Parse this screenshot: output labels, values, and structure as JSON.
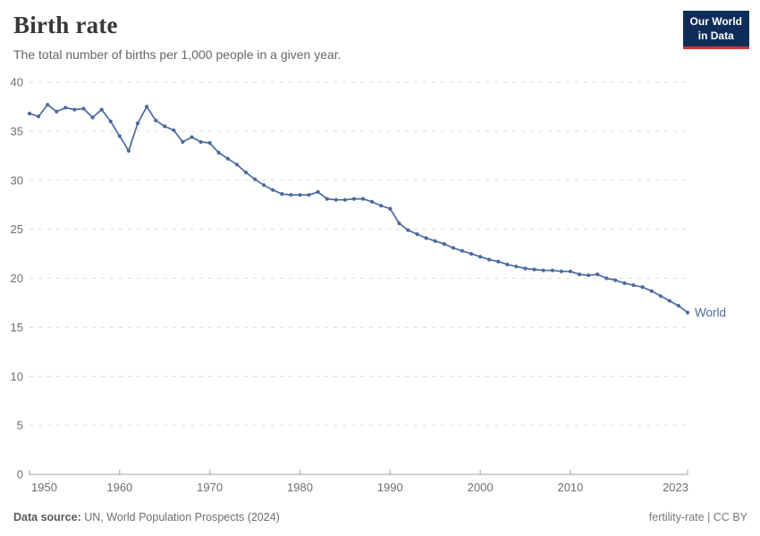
{
  "header": {
    "title": "Birth rate",
    "subtitle": "The total number of births per 1,000 people in a given year.",
    "logo": {
      "line1": "Our World",
      "line2": "in Data",
      "bg": "#102d59",
      "accent": "#d7342f"
    }
  },
  "chart_data": {
    "type": "line",
    "title": "Birth rate",
    "xlabel": "",
    "ylabel": "",
    "ylim": [
      0,
      40
    ],
    "yticks": [
      0,
      5,
      10,
      15,
      20,
      25,
      30,
      35,
      40
    ],
    "xticks": [
      1950,
      1960,
      1970,
      1980,
      1990,
      2000,
      2010,
      2023
    ],
    "grid": "horizontal-dashed",
    "legend_position": "end-of-line",
    "colors": {
      "line": "#4b69a0",
      "grid": "#dcdcdc",
      "axis": "#a0a0a0",
      "tick_label": "#6e6e6e"
    },
    "series": [
      {
        "name": "World",
        "color": "#4b69a0",
        "x": [
          1950,
          1951,
          1952,
          1953,
          1954,
          1955,
          1956,
          1957,
          1958,
          1959,
          1960,
          1961,
          1962,
          1963,
          1964,
          1965,
          1966,
          1967,
          1968,
          1969,
          1970,
          1971,
          1972,
          1973,
          1974,
          1975,
          1976,
          1977,
          1978,
          1979,
          1980,
          1981,
          1982,
          1983,
          1984,
          1985,
          1986,
          1987,
          1988,
          1989,
          1990,
          1991,
          1992,
          1993,
          1994,
          1995,
          1996,
          1997,
          1998,
          1999,
          2000,
          2001,
          2002,
          2003,
          2004,
          2005,
          2006,
          2007,
          2008,
          2009,
          2010,
          2011,
          2012,
          2013,
          2014,
          2015,
          2016,
          2017,
          2018,
          2019,
          2020,
          2021,
          2022,
          2023
        ],
        "values": [
          36.8,
          36.5,
          37.7,
          37.0,
          37.4,
          37.2,
          37.3,
          36.4,
          37.2,
          36.0,
          34.5,
          33.0,
          35.8,
          37.5,
          36.1,
          35.5,
          35.1,
          33.9,
          34.4,
          33.9,
          33.8,
          32.8,
          32.2,
          31.6,
          30.8,
          30.1,
          29.5,
          29.0,
          28.6,
          28.5,
          28.5,
          28.5,
          28.8,
          28.1,
          28.0,
          28.0,
          28.1,
          28.1,
          27.8,
          27.4,
          27.1,
          25.6,
          24.9,
          24.5,
          24.1,
          23.8,
          23.5,
          23.1,
          22.8,
          22.5,
          22.2,
          21.9,
          21.7,
          21.4,
          21.2,
          21.0,
          20.9,
          20.8,
          20.8,
          20.7,
          20.7,
          20.4,
          20.3,
          20.4,
          20.0,
          19.8,
          19.5,
          19.3,
          19.1,
          18.7,
          18.2,
          17.7,
          17.2,
          16.5
        ]
      }
    ]
  },
  "footer": {
    "source_label": "Data source:",
    "source_text": " UN, World Population Prospects (2024)",
    "right_text": "fertility-rate | CC BY"
  }
}
